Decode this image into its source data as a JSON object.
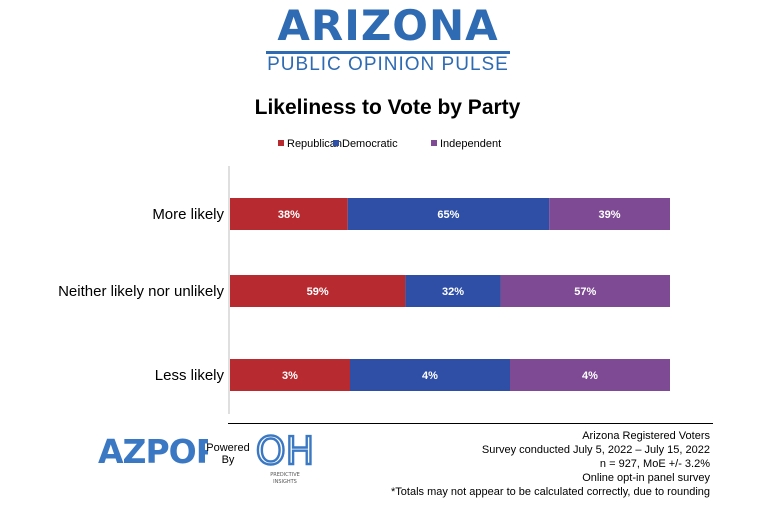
{
  "header": {
    "brand_title": "ARIZONA",
    "brand_subtitle": "PUBLIC OPINION PULSE"
  },
  "chart_data": {
    "type": "bar",
    "stacked": true,
    "orientation": "horizontal",
    "title": "Likeliness to Vote by Party",
    "categories": [
      "More likely",
      "Neither likely nor unlikely",
      "Less likely"
    ],
    "series": [
      {
        "name": "Republican",
        "color": "#b72b30",
        "values": [
          38,
          59,
          3
        ],
        "labels": [
          "38%",
          "59%",
          "3%"
        ]
      },
      {
        "name": "Democratic",
        "color": "#2f4fa6",
        "values": [
          65,
          32,
          4
        ],
        "labels": [
          "65%",
          "32%",
          "4%"
        ]
      },
      {
        "name": "Independent",
        "color": "#7d4a93",
        "values": [
          39,
          57,
          4
        ],
        "labels": [
          "39%",
          "57%",
          "4%"
        ]
      }
    ],
    "legend_position": "top",
    "grid": false
  },
  "footer": {
    "logo_left_text": "AZPOP",
    "powered_by": [
      "Powered",
      "By"
    ],
    "logo_right_text": "OH",
    "logo_right_caption": [
      "PREDICTIVE",
      "INSIGHTS"
    ],
    "notes": [
      "Arizona Registered Voters",
      "Survey conducted July 5, 2022 – July 15, 2022",
      "n = 927, MoE +/- 3.2%",
      "Online opt-in panel survey",
      "*Totals may not appear to be calculated correctly, due to rounding"
    ]
  }
}
